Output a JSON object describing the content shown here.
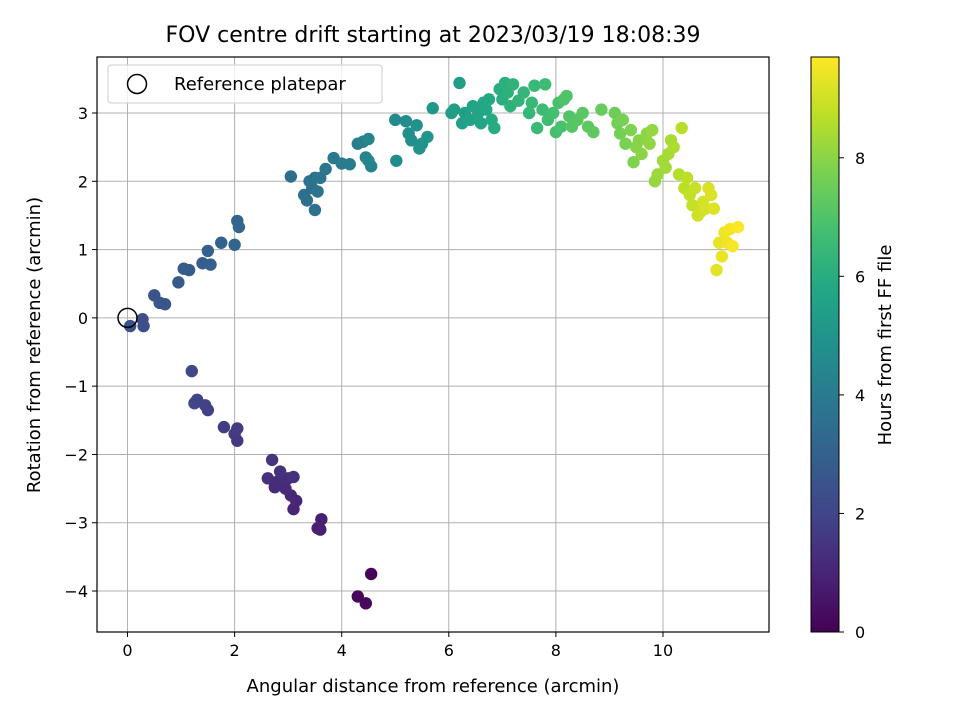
{
  "chart_data": {
    "type": "scatter",
    "title": "FOV centre drift starting at 2023/03/19 18:08:39",
    "xlabel": "Angular distance from reference (arcmin)",
    "ylabel": "Rotation from reference (arcmin)",
    "xlim": [
      -0.57,
      11.98
    ],
    "ylim": [
      -4.6,
      3.82
    ],
    "xticks": [
      0,
      2,
      4,
      6,
      8,
      10
    ],
    "yticks": [
      -4,
      -3,
      -2,
      -1,
      0,
      1,
      2,
      3
    ],
    "grid": true,
    "colormap": "viridis",
    "colorbar": {
      "label": "Hours from first FF file",
      "range": [
        0,
        9.7
      ],
      "ticks": [
        0,
        2,
        4,
        6,
        8
      ]
    },
    "legend": {
      "location": "top-left",
      "entries": [
        "Reference platepar"
      ]
    },
    "reference_point": {
      "x": 0,
      "y": 0,
      "marker": "open-circle"
    },
    "series": [
      {
        "points": [
          [
            4.55,
            -3.75,
            0.15
          ],
          [
            4.3,
            -4.08,
            0.2
          ],
          [
            4.45,
            -4.18,
            0.25
          ],
          [
            3.6,
            -3.1,
            0.8
          ],
          [
            3.62,
            -2.95,
            0.85
          ],
          [
            3.55,
            -3.08,
            0.9
          ],
          [
            3.1,
            -2.8,
            1.0
          ],
          [
            3.15,
            -2.68,
            1.05
          ],
          [
            3.05,
            -2.6,
            1.1
          ],
          [
            2.95,
            -2.5,
            1.15
          ],
          [
            2.8,
            -2.4,
            1.2
          ],
          [
            2.75,
            -2.48,
            1.2
          ],
          [
            3.0,
            -2.35,
            1.25
          ],
          [
            2.62,
            -2.35,
            1.3
          ],
          [
            3.1,
            -2.33,
            1.35
          ],
          [
            2.85,
            -2.25,
            1.4
          ],
          [
            2.7,
            -2.08,
            1.45
          ],
          [
            2.05,
            -1.8,
            1.6
          ],
          [
            2.0,
            -1.7,
            1.65
          ],
          [
            2.05,
            -1.62,
            1.7
          ],
          [
            1.8,
            -1.6,
            1.75
          ],
          [
            1.5,
            -1.35,
            1.85
          ],
          [
            1.45,
            -1.28,
            1.9
          ],
          [
            1.3,
            -1.2,
            1.95
          ],
          [
            1.25,
            -1.25,
            2.0
          ],
          [
            1.2,
            -0.78,
            2.1
          ],
          [
            0.28,
            -0.02,
            2.3
          ],
          [
            0.3,
            -0.12,
            2.35
          ],
          [
            0.05,
            -0.12,
            2.4
          ],
          [
            0.5,
            0.33,
            2.5
          ],
          [
            0.6,
            0.22,
            2.55
          ],
          [
            0.7,
            0.2,
            2.6
          ],
          [
            0.95,
            0.52,
            2.7
          ],
          [
            1.05,
            0.72,
            2.75
          ],
          [
            1.15,
            0.7,
            2.8
          ],
          [
            1.4,
            0.8,
            2.85
          ],
          [
            1.55,
            0.78,
            2.9
          ],
          [
            1.5,
            0.98,
            2.95
          ],
          [
            1.75,
            1.1,
            3.05
          ],
          [
            2.0,
            1.07,
            3.1
          ],
          [
            2.05,
            1.42,
            3.15
          ],
          [
            2.08,
            1.33,
            3.2
          ],
          [
            3.05,
            2.07,
            3.4
          ],
          [
            3.3,
            1.8,
            3.5
          ],
          [
            3.35,
            1.72,
            3.55
          ],
          [
            3.5,
            1.58,
            3.6
          ],
          [
            3.45,
            1.9,
            3.6
          ],
          [
            3.4,
            2.0,
            3.65
          ],
          [
            3.5,
            2.05,
            3.7
          ],
          [
            3.55,
            1.85,
            3.7
          ],
          [
            3.6,
            2.05,
            3.75
          ],
          [
            3.7,
            2.18,
            3.8
          ],
          [
            3.85,
            2.34,
            3.9
          ],
          [
            4.0,
            2.26,
            4.0
          ],
          [
            4.15,
            2.25,
            4.05
          ],
          [
            4.3,
            2.55,
            4.15
          ],
          [
            4.4,
            2.58,
            4.2
          ],
          [
            4.45,
            2.35,
            4.25
          ],
          [
            4.55,
            2.22,
            4.3
          ],
          [
            4.5,
            2.62,
            4.35
          ],
          [
            4.5,
            2.3,
            4.4
          ],
          [
            5.0,
            2.9,
            4.6
          ],
          [
            5.02,
            2.3,
            4.65
          ],
          [
            5.2,
            2.88,
            4.7
          ],
          [
            5.25,
            2.7,
            4.75
          ],
          [
            5.3,
            2.6,
            4.8
          ],
          [
            5.4,
            2.82,
            4.85
          ],
          [
            5.45,
            2.48,
            4.9
          ],
          [
            5.5,
            2.55,
            4.95
          ],
          [
            5.6,
            2.65,
            5.0
          ],
          [
            5.7,
            3.07,
            5.1
          ],
          [
            6.05,
            3.0,
            5.3
          ],
          [
            6.1,
            3.05,
            5.35
          ],
          [
            6.2,
            3.44,
            5.4
          ],
          [
            6.25,
            2.85,
            5.45
          ],
          [
            6.3,
            3.0,
            5.5
          ],
          [
            6.4,
            2.9,
            5.55
          ],
          [
            6.45,
            3.1,
            5.6
          ],
          [
            6.55,
            3.0,
            5.65
          ],
          [
            6.6,
            2.85,
            5.7
          ],
          [
            6.65,
            3.15,
            5.75
          ],
          [
            6.7,
            3.05,
            5.8
          ],
          [
            6.75,
            3.2,
            5.85
          ],
          [
            6.8,
            2.9,
            5.9
          ],
          [
            6.85,
            2.78,
            5.95
          ],
          [
            6.95,
            3.35,
            6.0
          ],
          [
            7.0,
            3.2,
            6.05
          ],
          [
            7.05,
            3.44,
            6.1
          ],
          [
            7.1,
            3.3,
            6.15
          ],
          [
            7.15,
            3.1,
            6.2
          ],
          [
            7.2,
            3.42,
            6.25
          ],
          [
            7.3,
            3.18,
            6.3
          ],
          [
            7.4,
            3.3,
            6.35
          ],
          [
            7.5,
            3.0,
            6.4
          ],
          [
            7.55,
            3.15,
            6.45
          ],
          [
            7.6,
            3.4,
            6.5
          ],
          [
            7.65,
            2.78,
            6.55
          ],
          [
            7.75,
            3.05,
            6.6
          ],
          [
            7.8,
            3.42,
            6.65
          ],
          [
            7.85,
            2.9,
            6.7
          ],
          [
            7.95,
            3.0,
            6.75
          ],
          [
            8.0,
            2.72,
            6.8
          ],
          [
            8.05,
            3.15,
            6.85
          ],
          [
            8.1,
            2.8,
            6.9
          ],
          [
            8.15,
            3.2,
            6.95
          ],
          [
            8.2,
            3.25,
            7.0
          ],
          [
            8.25,
            2.95,
            7.05
          ],
          [
            8.3,
            2.8,
            7.1
          ],
          [
            8.4,
            2.9,
            7.15
          ],
          [
            8.5,
            3.0,
            7.2
          ],
          [
            8.6,
            2.8,
            7.25
          ],
          [
            8.7,
            2.72,
            7.3
          ],
          [
            8.85,
            3.05,
            7.4
          ],
          [
            9.1,
            3.0,
            7.55
          ],
          [
            9.15,
            2.85,
            7.6
          ],
          [
            9.2,
            2.7,
            7.65
          ],
          [
            9.25,
            2.9,
            7.7
          ],
          [
            9.3,
            2.55,
            7.75
          ],
          [
            9.4,
            2.75,
            7.8
          ],
          [
            9.45,
            2.28,
            7.85
          ],
          [
            9.5,
            2.5,
            7.9
          ],
          [
            9.55,
            2.6,
            7.95
          ],
          [
            9.6,
            2.4,
            8.0
          ],
          [
            9.7,
            2.7,
            8.05
          ],
          [
            9.75,
            2.55,
            8.1
          ],
          [
            9.8,
            2.75,
            8.15
          ],
          [
            9.85,
            2.0,
            8.2
          ],
          [
            9.9,
            2.1,
            8.25
          ],
          [
            10.0,
            2.3,
            8.3
          ],
          [
            10.05,
            2.2,
            8.35
          ],
          [
            10.1,
            2.4,
            8.4
          ],
          [
            10.15,
            2.6,
            8.45
          ],
          [
            10.2,
            2.5,
            8.5
          ],
          [
            10.3,
            2.1,
            8.6
          ],
          [
            10.35,
            2.78,
            8.65
          ],
          [
            10.4,
            1.9,
            8.7
          ],
          [
            10.45,
            2.05,
            8.75
          ],
          [
            10.5,
            1.8,
            8.8
          ],
          [
            10.55,
            1.65,
            8.85
          ],
          [
            10.6,
            1.9,
            8.9
          ],
          [
            10.65,
            1.5,
            8.95
          ],
          [
            10.7,
            1.55,
            9.0
          ],
          [
            10.75,
            1.7,
            9.05
          ],
          [
            10.8,
            1.6,
            9.1
          ],
          [
            10.85,
            1.9,
            9.15
          ],
          [
            10.9,
            1.8,
            9.2
          ],
          [
            10.95,
            1.6,
            9.25
          ],
          [
            11.0,
            0.7,
            9.3
          ],
          [
            11.05,
            1.1,
            9.35
          ],
          [
            11.1,
            0.9,
            9.4
          ],
          [
            11.15,
            1.25,
            9.45
          ],
          [
            11.2,
            1.1,
            9.5
          ],
          [
            11.25,
            1.3,
            9.55
          ],
          [
            11.3,
            1.05,
            9.6
          ],
          [
            11.4,
            1.33,
            9.65
          ]
        ]
      }
    ]
  }
}
